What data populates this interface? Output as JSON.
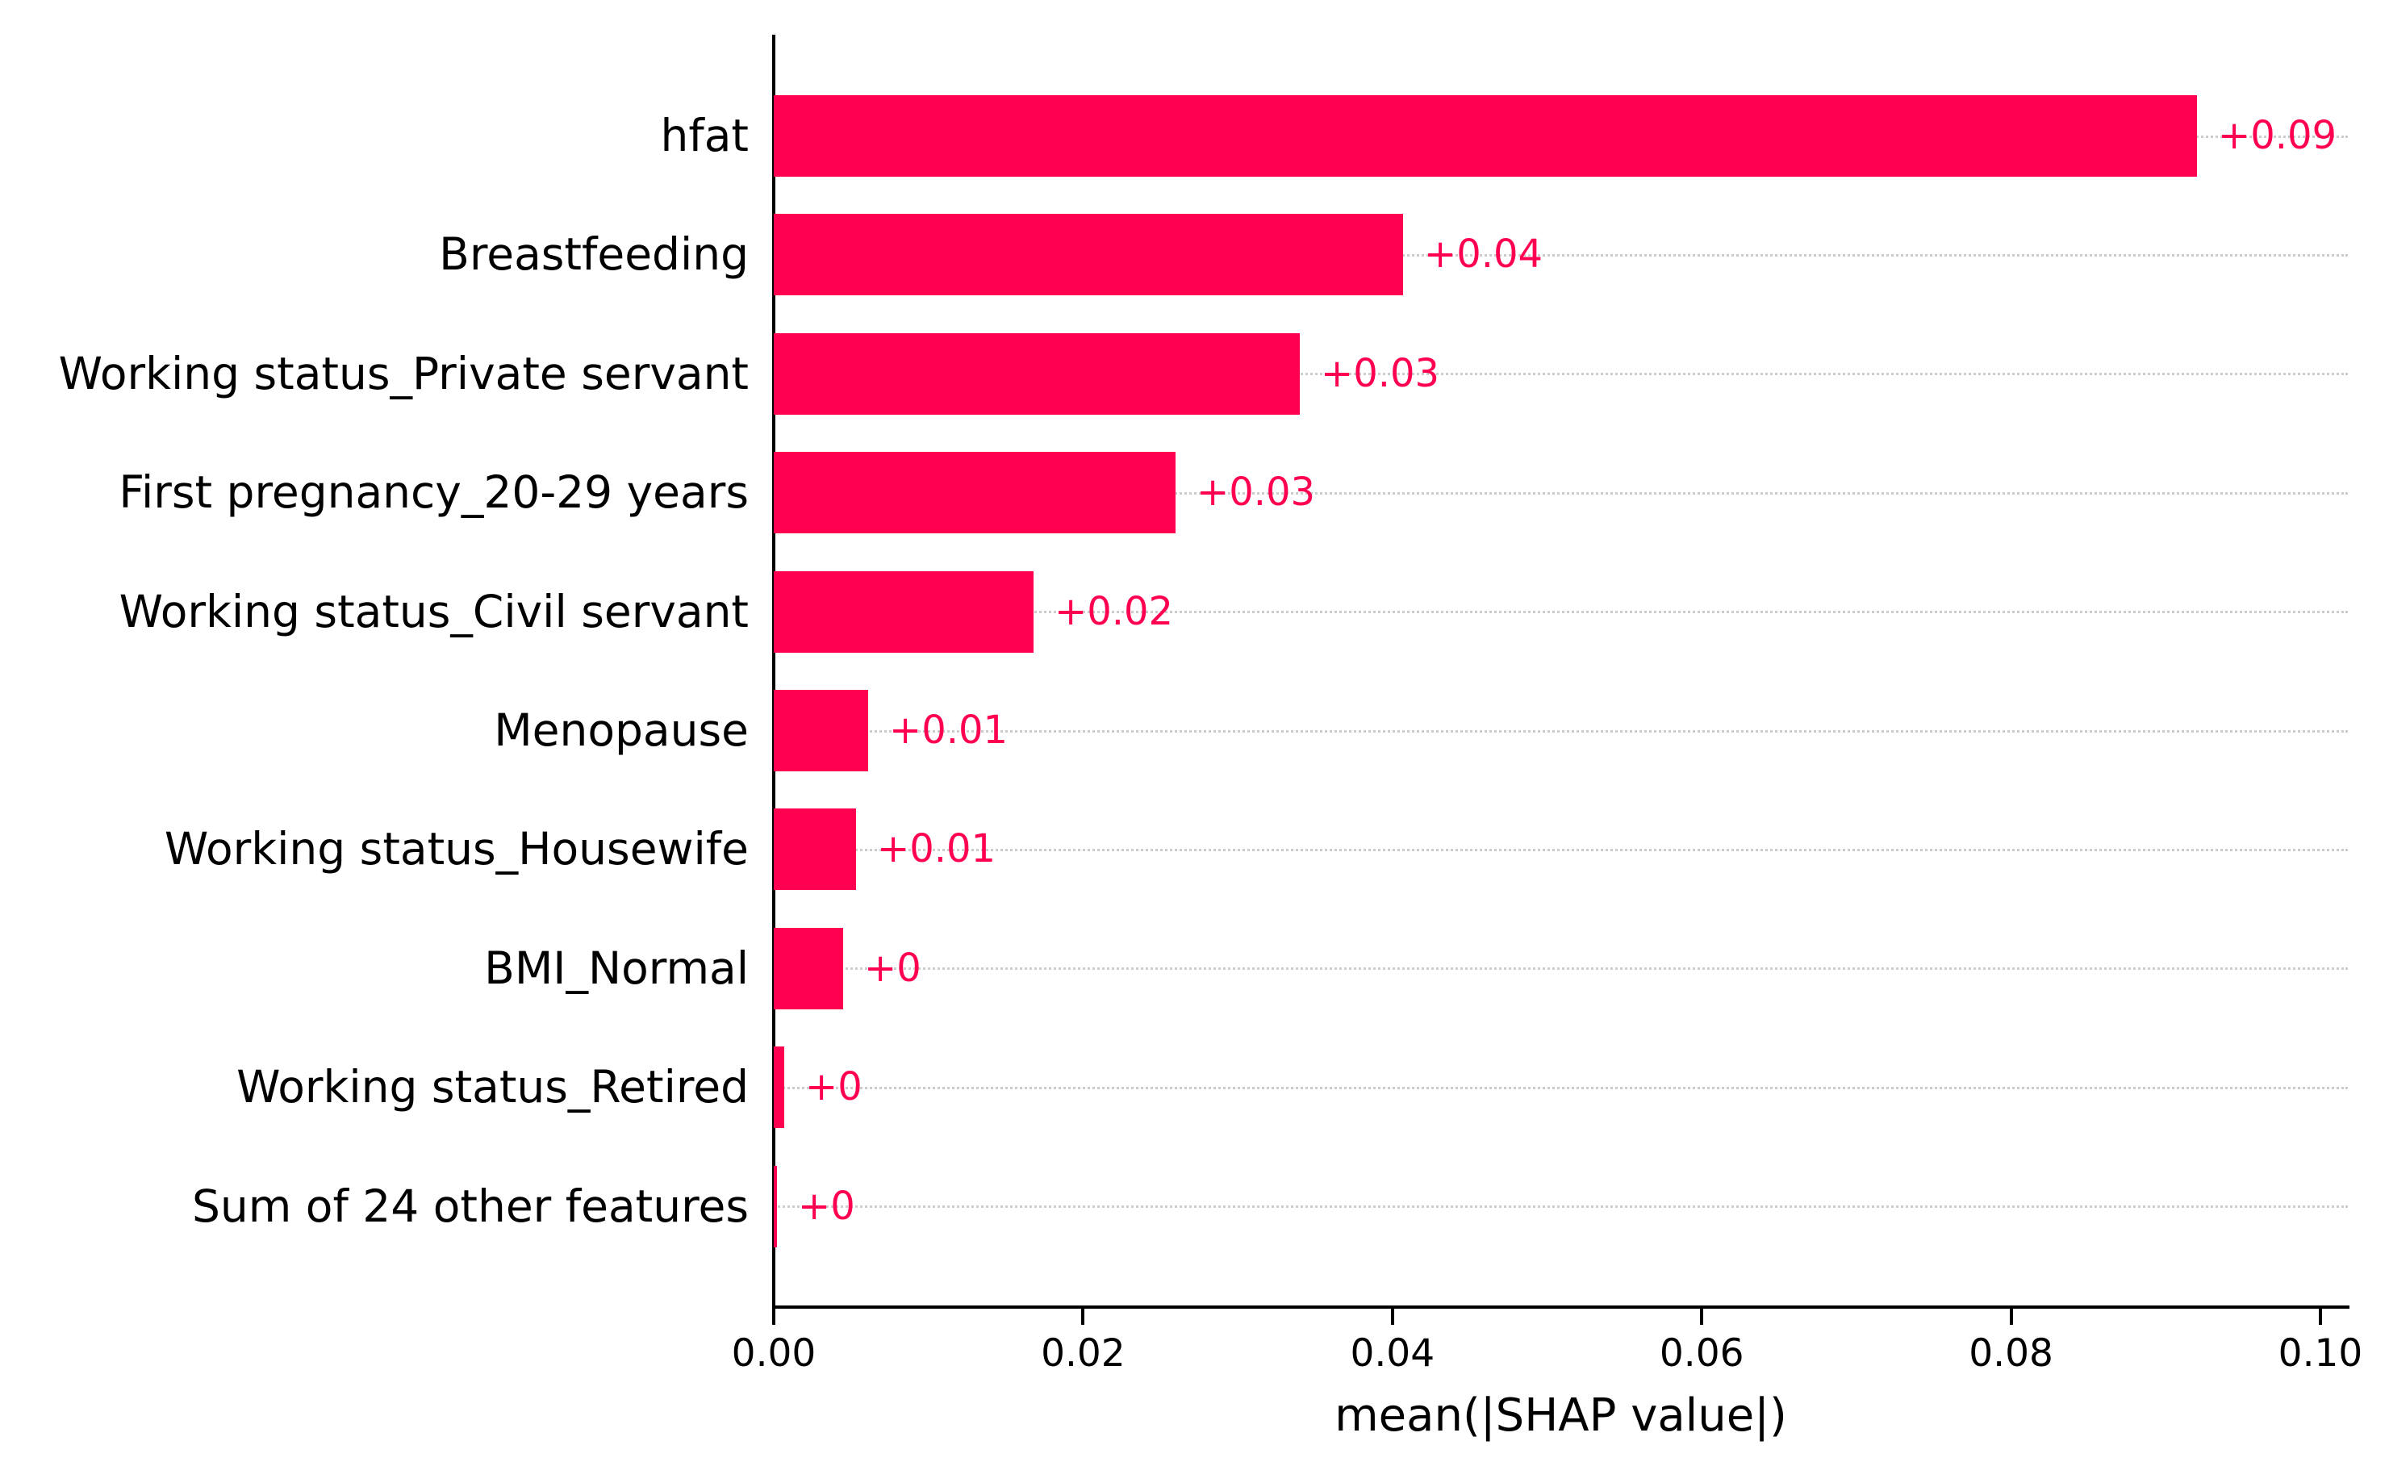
{
  "figure": {
    "background_color": "#ffffff",
    "bar_color": "#ff0051",
    "value_label_color": "#ff0051",
    "gridline_color": "#cccccc",
    "axis_color": "#000000"
  },
  "chart_data": {
    "type": "bar",
    "orientation": "horizontal",
    "title": "",
    "xlabel": "mean(|SHAP value|)",
    "ylabel": "",
    "xlim": [
      0.0,
      0.1
    ],
    "grid": "dotted horizontal leader line at each bar row",
    "legend": "none",
    "categories": [
      "hfat",
      "Breastfeeding",
      "Working status_Private servant",
      "First pregnancy_20-29 years",
      "Working status_Civil servant",
      "Menopause",
      "Working status_Housewife",
      "BMI_Normal",
      "Working status_Retired",
      "Sum of 24 other features"
    ],
    "values": [
      0.092,
      0.0407,
      0.034,
      0.026,
      0.0168,
      0.0061,
      0.0053,
      0.0045,
      0.0007,
      0.0002
    ],
    "value_labels": [
      "+0.09",
      "+0.04",
      "+0.03",
      "+0.03",
      "+0.02",
      "+0.01",
      "+0.01",
      "+0",
      "+0",
      "+0"
    ],
    "xticks": {
      "values": [
        0.0,
        0.02,
        0.04,
        0.06,
        0.08,
        0.1
      ],
      "labels": [
        "0.00",
        "0.02",
        "0.04",
        "0.06",
        "0.08",
        "0.10"
      ]
    }
  }
}
